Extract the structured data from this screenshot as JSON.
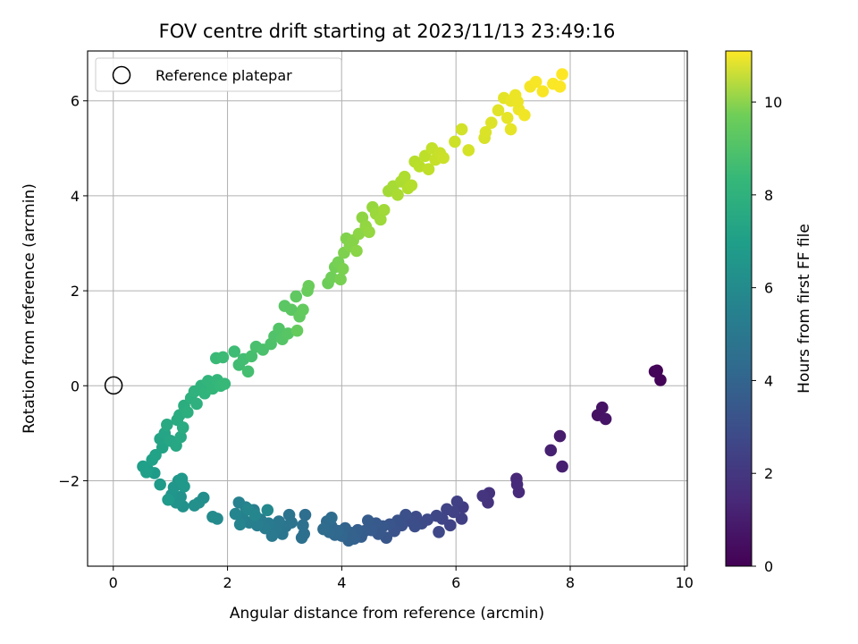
{
  "chart_data": {
    "type": "scatter",
    "title": "FOV centre drift starting at 2023/11/13 23:49:16",
    "xlabel": "Angular distance from reference (arcmin)",
    "ylabel": "Rotation from reference (arcmin)",
    "xlim": [
      -0.45,
      10.05
    ],
    "ylim": [
      -3.8,
      7.05
    ],
    "xticks": [
      "0",
      "2",
      "4",
      "6",
      "8",
      "10"
    ],
    "yticks": [
      "−2",
      "0",
      "2",
      "4",
      "6"
    ],
    "grid": true,
    "legend": {
      "placement": "top-left",
      "entries": [
        "Reference platepar"
      ]
    },
    "reference_point": {
      "x": 0,
      "y": 0
    },
    "colorbar": {
      "label": "Hours from first FF file",
      "range": [
        0,
        11.1
      ],
      "ticks": [
        "0",
        "2",
        "4",
        "6",
        "8",
        "10"
      ],
      "colormap": "viridis"
    },
    "points": [
      [
        9.52,
        0.32,
        0.05
      ],
      [
        9.58,
        0.12,
        0.1
      ],
      [
        9.48,
        0.3,
        0.15
      ],
      [
        8.48,
        -0.62,
        0.5
      ],
      [
        8.56,
        -0.46,
        0.55
      ],
      [
        8.62,
        -0.7,
        0.6
      ],
      [
        7.82,
        -1.06,
        0.85
      ],
      [
        7.86,
        -1.7,
        0.95
      ],
      [
        7.66,
        -1.36,
        1.0
      ],
      [
        7.06,
        -1.96,
        1.25
      ],
      [
        7.1,
        -2.24,
        1.3
      ],
      [
        7.07,
        -2.08,
        1.35
      ],
      [
        6.58,
        -2.26,
        1.6
      ],
      [
        6.56,
        -2.46,
        1.65
      ],
      [
        6.47,
        -2.32,
        1.7
      ],
      [
        6.12,
        -2.56,
        2.0
      ],
      [
        6.1,
        -2.8,
        2.05
      ],
      [
        6.02,
        -2.44,
        2.1
      ],
      [
        5.96,
        -2.66,
        2.15
      ],
      [
        5.84,
        -2.6,
        2.2
      ],
      [
        5.9,
        -2.94,
        2.25
      ],
      [
        5.76,
        -2.8,
        2.3
      ],
      [
        5.66,
        -2.74,
        2.35
      ],
      [
        5.7,
        -3.08,
        2.4
      ],
      [
        5.5,
        -2.82,
        2.45
      ],
      [
        5.4,
        -2.9,
        2.5
      ],
      [
        5.3,
        -2.76,
        2.55
      ],
      [
        5.22,
        -2.86,
        2.6
      ],
      [
        5.28,
        -2.96,
        2.65
      ],
      [
        5.12,
        -2.72,
        2.7
      ],
      [
        5.05,
        -2.94,
        2.75
      ],
      [
        4.98,
        -2.84,
        2.8
      ],
      [
        4.92,
        -3.06,
        2.85
      ],
      [
        4.84,
        -2.92,
        2.9
      ],
      [
        4.78,
        -3.2,
        2.95
      ],
      [
        4.72,
        -2.96,
        3.0
      ],
      [
        4.64,
        -3.12,
        3.05
      ],
      [
        4.6,
        -2.9,
        3.1
      ],
      [
        4.52,
        -3.04,
        3.15
      ],
      [
        4.46,
        -2.84,
        3.2
      ],
      [
        4.4,
        -3.06,
        3.25
      ],
      [
        4.34,
        -3.18,
        3.3
      ],
      [
        4.28,
        -3.04,
        3.35
      ],
      [
        4.22,
        -3.22,
        3.4
      ],
      [
        4.16,
        -3.1,
        3.45
      ],
      [
        4.12,
        -3.26,
        3.5
      ],
      [
        4.06,
        -3.0,
        3.55
      ],
      [
        4.0,
        -3.16,
        3.6
      ],
      [
        3.94,
        -3.06,
        3.65
      ],
      [
        3.88,
        -3.14,
        3.7
      ],
      [
        3.82,
        -2.96,
        3.75
      ],
      [
        3.78,
        -3.08,
        3.8
      ],
      [
        3.74,
        -2.86,
        3.85
      ],
      [
        3.68,
        -3.02,
        3.9
      ],
      [
        3.82,
        -2.78,
        3.95
      ],
      [
        3.36,
        -2.72,
        4.0
      ],
      [
        3.34,
        -3.12,
        4.05
      ],
      [
        3.3,
        -3.2,
        4.1
      ],
      [
        3.32,
        -2.94,
        4.15
      ],
      [
        3.12,
        -2.88,
        4.2
      ],
      [
        3.08,
        -2.72,
        4.25
      ],
      [
        3.02,
        -2.96,
        4.3
      ],
      [
        2.96,
        -3.12,
        4.35
      ],
      [
        2.9,
        -2.86,
        4.4
      ],
      [
        2.84,
        -3.02,
        4.45
      ],
      [
        2.78,
        -3.16,
        4.5
      ],
      [
        2.72,
        -2.9,
        4.55
      ],
      [
        2.66,
        -3.0,
        4.6
      ],
      [
        2.58,
        -2.82,
        4.65
      ],
      [
        2.52,
        -2.94,
        4.7
      ],
      [
        2.46,
        -2.62,
        4.75
      ],
      [
        2.38,
        -2.88,
        4.8
      ],
      [
        2.32,
        -2.56,
        4.85
      ],
      [
        2.26,
        -2.76,
        4.9
      ],
      [
        2.2,
        -2.46,
        4.95
      ],
      [
        2.22,
        -2.92,
        5.0
      ],
      [
        2.14,
        -2.7,
        5.05
      ],
      [
        2.36,
        -2.6,
        5.1
      ],
      [
        2.48,
        -2.72,
        5.15
      ],
      [
        2.7,
        -2.62,
        5.2
      ],
      [
        1.82,
        -2.8,
        5.3
      ],
      [
        1.74,
        -2.76,
        5.35
      ],
      [
        1.58,
        -2.36,
        5.45
      ],
      [
        1.5,
        -2.46,
        5.5
      ],
      [
        1.42,
        -2.52,
        5.55
      ],
      [
        1.22,
        -2.54,
        5.6
      ],
      [
        1.18,
        -2.34,
        5.65
      ],
      [
        1.1,
        -2.46,
        5.7
      ],
      [
        1.02,
        -2.3,
        5.75
      ],
      [
        1.06,
        -2.14,
        5.8
      ],
      [
        1.14,
        -2.0,
        5.85
      ],
      [
        1.24,
        -2.12,
        5.9
      ],
      [
        1.2,
        -1.96,
        5.95
      ],
      [
        0.96,
        -2.4,
        6.0
      ],
      [
        0.82,
        -2.08,
        6.05
      ],
      [
        0.72,
        -1.84,
        6.1
      ],
      [
        0.6,
        -1.76,
        6.15
      ],
      [
        0.52,
        -1.7,
        6.2
      ],
      [
        0.58,
        -1.82,
        6.25
      ],
      [
        0.68,
        -1.56,
        6.3
      ],
      [
        0.74,
        -1.46,
        6.35
      ],
      [
        0.86,
        -1.3,
        6.4
      ],
      [
        0.82,
        -1.12,
        6.45
      ],
      [
        0.9,
        -1.0,
        6.5
      ],
      [
        1.0,
        -1.16,
        6.55
      ],
      [
        1.1,
        -1.26,
        6.6
      ],
      [
        1.18,
        -1.08,
        6.65
      ],
      [
        0.94,
        -0.82,
        6.7
      ],
      [
        1.12,
        -0.72,
        6.75
      ],
      [
        1.22,
        -0.88,
        6.8
      ],
      [
        1.16,
        -0.62,
        6.85
      ],
      [
        1.24,
        -0.42,
        6.9
      ],
      [
        1.3,
        -0.56,
        6.95
      ],
      [
        1.36,
        -0.26,
        7.0
      ],
      [
        1.46,
        -0.38,
        7.05
      ],
      [
        1.42,
        -0.12,
        7.1
      ],
      [
        1.54,
        0.0,
        7.15
      ],
      [
        1.6,
        -0.16,
        7.2
      ],
      [
        1.66,
        0.1,
        7.25
      ],
      [
        1.74,
        -0.06,
        7.3
      ],
      [
        1.82,
        0.12,
        7.35
      ],
      [
        1.88,
        0.0,
        7.4
      ],
      [
        1.95,
        0.04,
        7.45
      ],
      [
        1.8,
        0.58,
        7.5
      ],
      [
        1.92,
        0.6,
        7.55
      ],
      [
        2.12,
        0.72,
        7.6
      ],
      [
        2.2,
        0.44,
        7.65
      ],
      [
        2.28,
        0.56,
        7.7
      ],
      [
        2.36,
        0.3,
        7.75
      ],
      [
        2.42,
        0.62,
        7.8
      ],
      [
        2.5,
        0.82,
        7.85
      ],
      [
        2.62,
        0.76,
        7.9
      ],
      [
        2.76,
        0.88,
        7.95
      ],
      [
        2.82,
        1.04,
        8.0
      ],
      [
        2.9,
        1.2,
        8.05
      ],
      [
        2.96,
        0.98,
        8.1
      ],
      [
        3.06,
        1.1,
        8.15
      ],
      [
        3.0,
        1.68,
        8.2
      ],
      [
        3.12,
        1.6,
        8.25
      ],
      [
        3.2,
        1.88,
        8.3
      ],
      [
        3.26,
        1.46,
        8.35
      ],
      [
        3.32,
        1.6,
        8.4
      ],
      [
        3.22,
        1.16,
        8.45
      ],
      [
        3.4,
        2.0,
        8.5
      ],
      [
        3.42,
        2.1,
        8.55
      ],
      [
        3.76,
        2.16,
        8.6
      ],
      [
        3.82,
        2.28,
        8.65
      ],
      [
        3.88,
        2.5,
        8.7
      ],
      [
        3.94,
        2.6,
        8.75
      ],
      [
        3.98,
        2.24,
        8.8
      ],
      [
        4.02,
        2.46,
        8.85
      ],
      [
        4.04,
        2.8,
        8.9
      ],
      [
        4.08,
        3.1,
        8.95
      ],
      [
        4.14,
        2.94,
        9.0
      ],
      [
        4.2,
        3.06,
        9.05
      ],
      [
        4.26,
        2.84,
        9.1
      ],
      [
        4.3,
        3.2,
        9.15
      ],
      [
        4.36,
        3.54,
        9.2
      ],
      [
        4.42,
        3.36,
        9.25
      ],
      [
        4.48,
        3.24,
        9.3
      ],
      [
        4.54,
        3.76,
        9.35
      ],
      [
        4.6,
        3.62,
        9.4
      ],
      [
        4.68,
        3.5,
        9.45
      ],
      [
        4.74,
        3.7,
        9.5
      ],
      [
        4.82,
        4.1,
        9.55
      ],
      [
        4.9,
        4.2,
        9.6
      ],
      [
        4.98,
        4.02,
        9.65
      ],
      [
        5.04,
        4.3,
        9.7
      ],
      [
        5.1,
        4.4,
        9.75
      ],
      [
        5.16,
        4.16,
        9.8
      ],
      [
        5.22,
        4.22,
        9.85
      ],
      [
        5.28,
        4.72,
        9.9
      ],
      [
        5.36,
        4.62,
        9.95
      ],
      [
        5.46,
        4.84,
        10.0
      ],
      [
        5.52,
        4.56,
        10.05
      ],
      [
        5.58,
        5.0,
        10.1
      ],
      [
        5.64,
        4.76,
        10.15
      ],
      [
        5.72,
        4.9,
        10.2
      ],
      [
        5.78,
        4.8,
        10.25
      ],
      [
        5.98,
        5.14,
        10.3
      ],
      [
        6.1,
        5.4,
        10.35
      ],
      [
        6.22,
        4.96,
        10.4
      ],
      [
        6.5,
        5.22,
        10.45
      ],
      [
        6.52,
        5.34,
        10.5
      ],
      [
        6.62,
        5.54,
        10.55
      ],
      [
        6.74,
        5.8,
        10.6
      ],
      [
        6.84,
        6.06,
        10.65
      ],
      [
        6.9,
        5.64,
        10.7
      ],
      [
        6.96,
        6.0,
        10.75
      ],
      [
        7.04,
        6.12,
        10.8
      ],
      [
        7.1,
        5.82,
        10.85
      ],
      [
        7.2,
        5.7,
        10.9
      ],
      [
        7.3,
        6.3,
        10.95
      ],
      [
        7.4,
        6.4,
        11.0
      ],
      [
        7.52,
        6.2,
        11.02
      ],
      [
        7.7,
        6.36,
        11.05
      ],
      [
        7.82,
        6.3,
        11.07
      ],
      [
        7.86,
        6.56,
        11.1
      ],
      [
        6.96,
        5.4,
        10.7
      ],
      [
        7.08,
        5.98,
        10.8
      ]
    ]
  }
}
